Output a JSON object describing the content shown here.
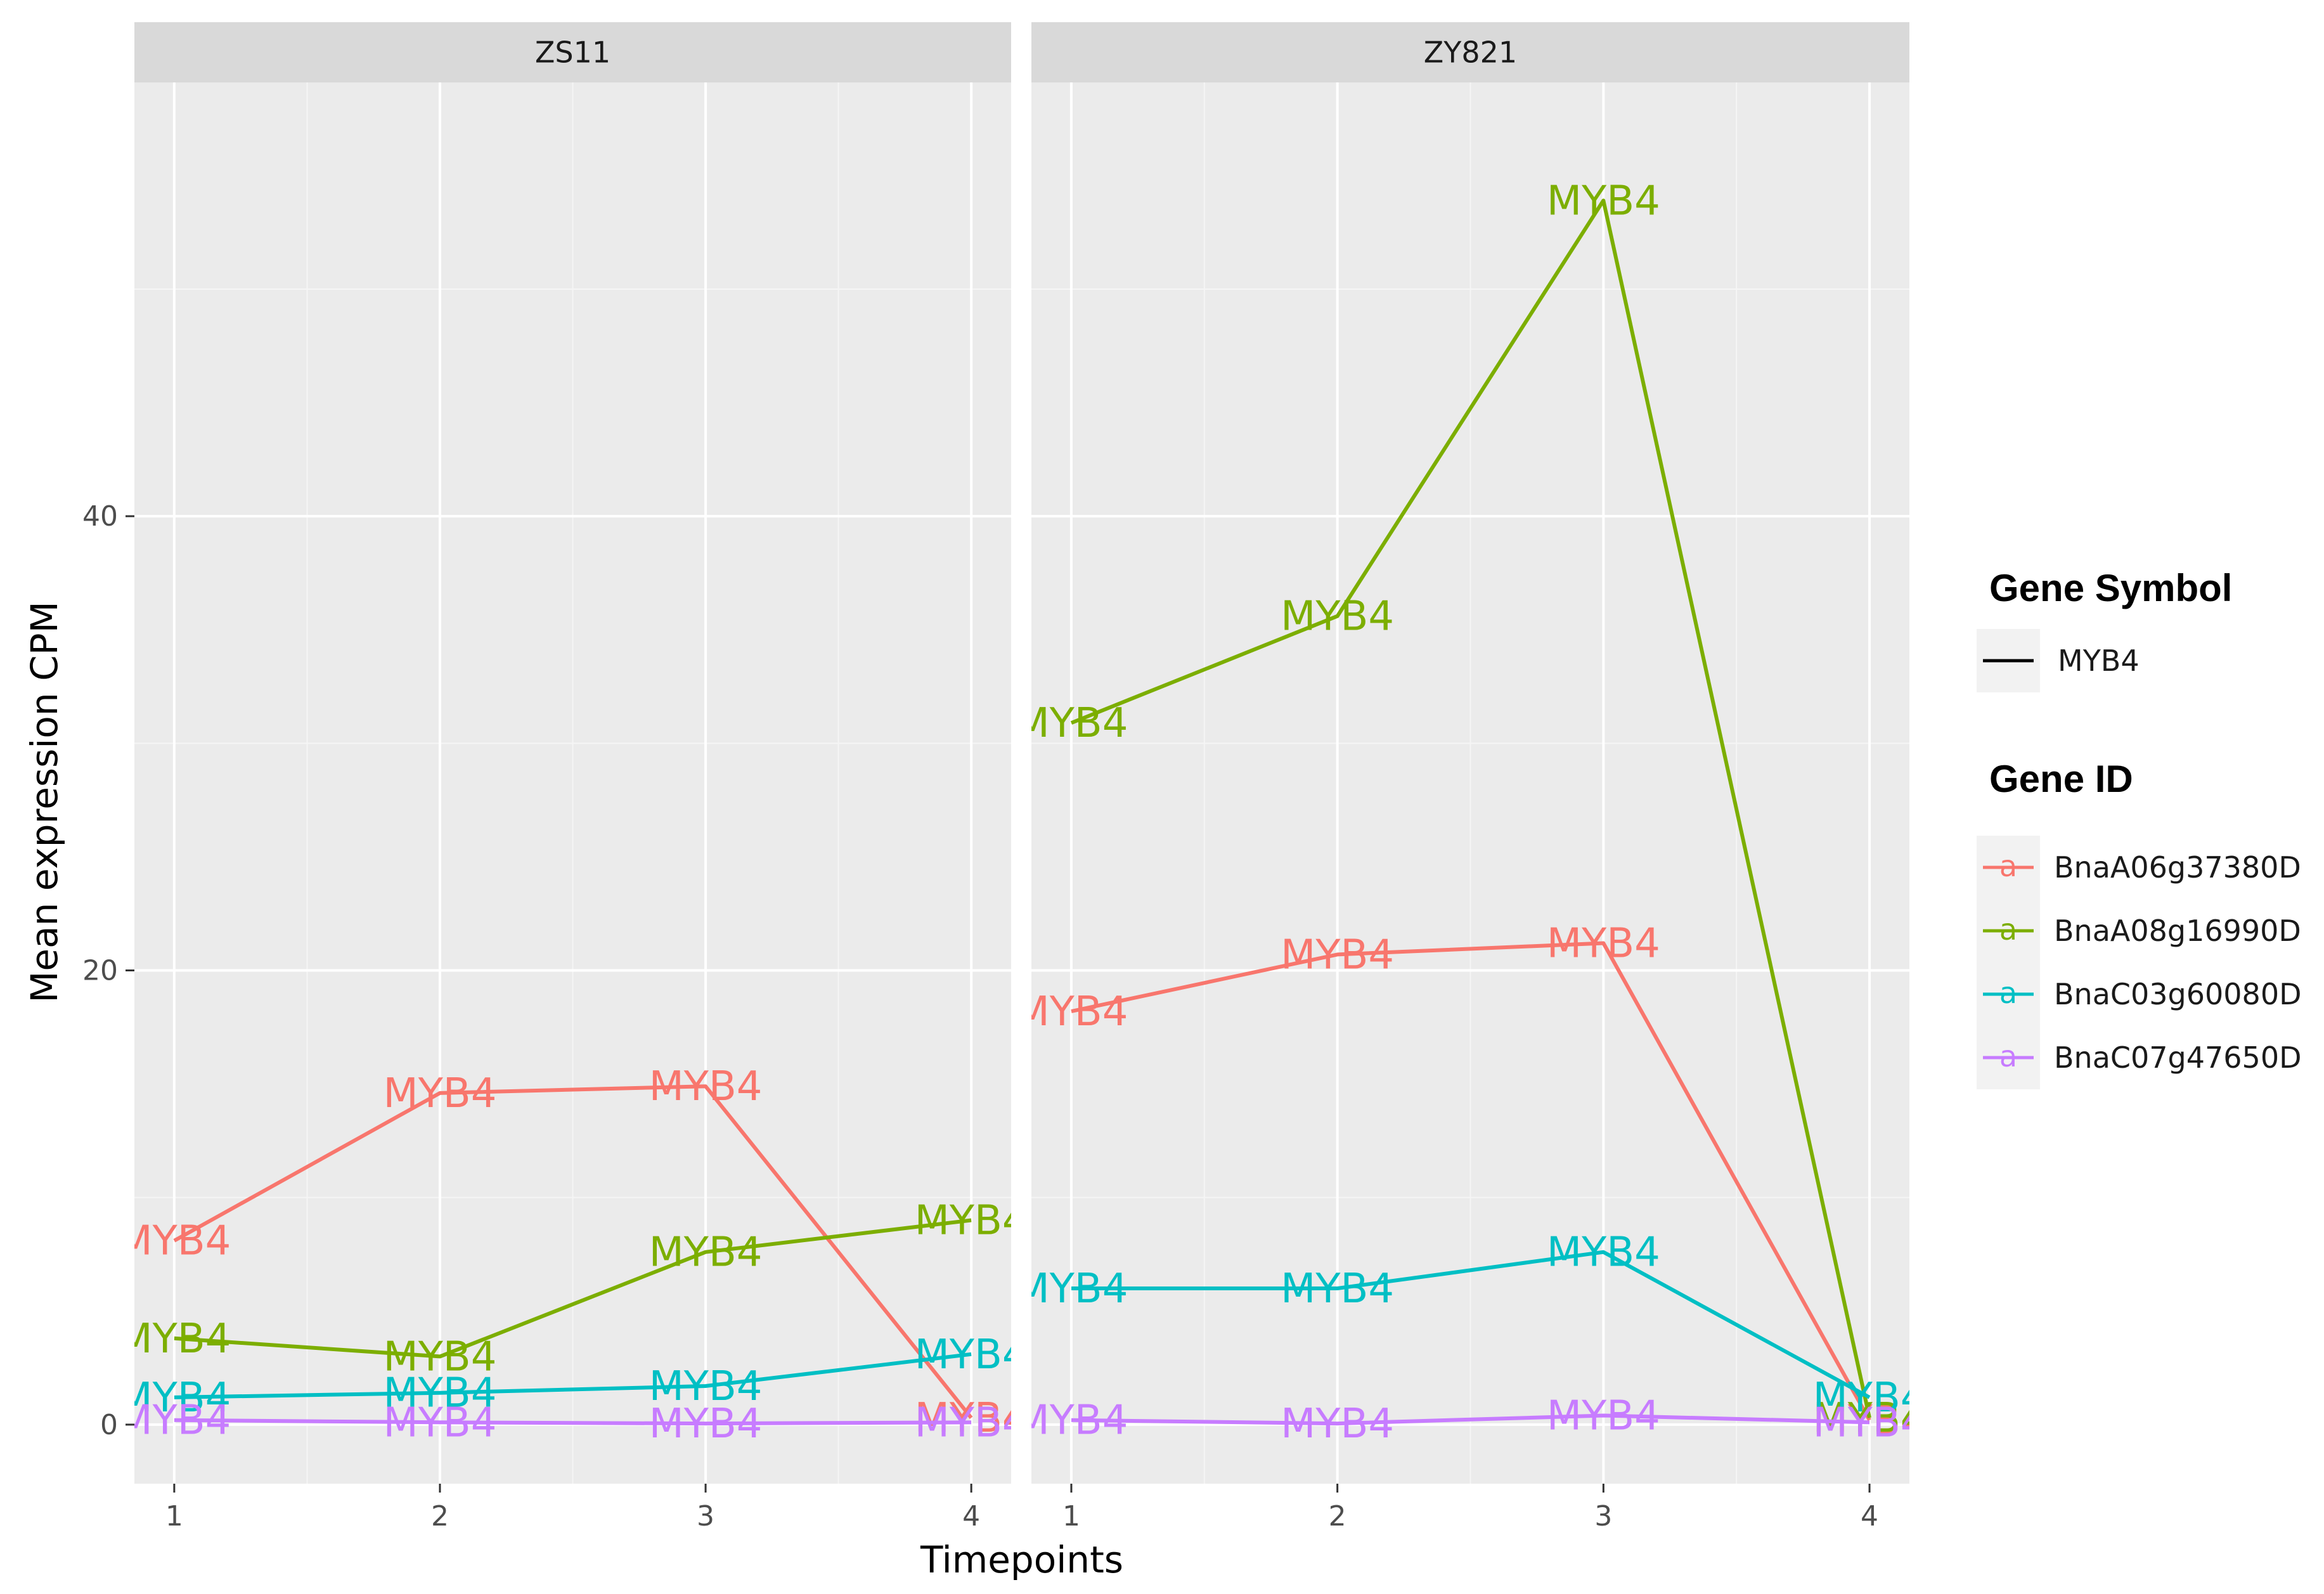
{
  "chart_data": {
    "type": "line",
    "facet_by": "Cultivar",
    "panels": [
      "ZS11",
      "ZY821"
    ],
    "xlabel": "Timepoints",
    "ylabel": "Mean expression CPM",
    "x": [
      1,
      2,
      3,
      4
    ],
    "x_ticks": [
      "1",
      "2",
      "3",
      "4"
    ],
    "xlim": [
      0.85,
      4.15
    ],
    "ylim": [
      -2.6,
      59.1
    ],
    "y_ticks": [
      0,
      20,
      40
    ],
    "point_label": "MYB4",
    "series": [
      {
        "name": "BnaA06g37380D",
        "color": "#F8766D",
        "values": {
          "ZS11": [
            8.1,
            14.6,
            14.9,
            0.3
          ],
          "ZY821": [
            18.2,
            20.7,
            21.2,
            0.2
          ]
        }
      },
      {
        "name": "BnaA08g16990D",
        "color": "#7CAE00",
        "values": {
          "ZS11": [
            3.8,
            3.0,
            7.6,
            9.0
          ],
          "ZY821": [
            30.9,
            35.6,
            53.9,
            0.3
          ]
        }
      },
      {
        "name": "BnaC03g60080D",
        "color": "#00BFC4",
        "values": {
          "ZS11": [
            1.2,
            1.4,
            1.7,
            3.1
          ],
          "ZY821": [
            6.0,
            6.0,
            7.6,
            1.2
          ]
        }
      },
      {
        "name": "BnaC07g47650D",
        "color": "#C77CFF",
        "values": {
          "ZS11": [
            0.2,
            0.1,
            0.05,
            0.1
          ],
          "ZY821": [
            0.2,
            0.05,
            0.4,
            0.1
          ]
        }
      }
    ],
    "legend": {
      "position": "right",
      "linetype_title": "Gene Symbol",
      "linetype_entries": [
        "MYB4"
      ],
      "color_title": "Gene ID",
      "color_entries": [
        "BnaA06g37380D",
        "BnaA08g16990D",
        "BnaC03g60080D",
        "BnaC07g47650D"
      ],
      "key_glyph": "a"
    }
  }
}
